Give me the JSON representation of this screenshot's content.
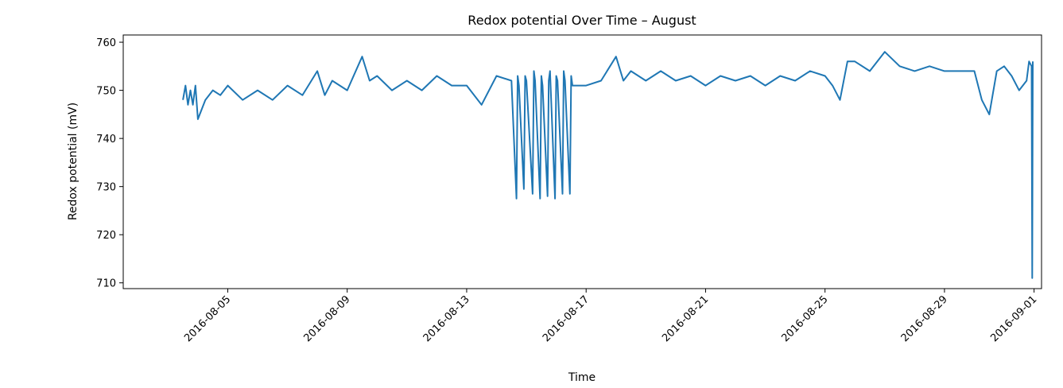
{
  "chart_data": {
    "type": "line",
    "title": "Redox potential Over Time – August",
    "xlabel": "Time",
    "ylabel": "Redox potential (mV)",
    "x_ticks": [
      "2016-08-05",
      "2016-08-09",
      "2016-08-13",
      "2016-08-17",
      "2016-08-21",
      "2016-08-25",
      "2016-08-29",
      "2016-09-01"
    ],
    "y_ticks": [
      710,
      720,
      730,
      740,
      750,
      760
    ],
    "xlim": [
      "2016-08-01T12:00",
      "2016-09-01T06:00"
    ],
    "ylim": [
      708.8,
      761.5
    ],
    "grid": false,
    "series": [
      {
        "color": "#1f77b4",
        "x": [
          "2016-08-03T12:00",
          "2016-08-03T14:00",
          "2016-08-03T16:00",
          "2016-08-03T18:00",
          "2016-08-03T20:00",
          "2016-08-03T22:00",
          "2016-08-04T00:00",
          "2016-08-04T06:00",
          "2016-08-04T12:00",
          "2016-08-04T18:00",
          "2016-08-05T00:00",
          "2016-08-05T12:00",
          "2016-08-06T00:00",
          "2016-08-06T12:00",
          "2016-08-07T00:00",
          "2016-08-07T12:00",
          "2016-08-08T00:00",
          "2016-08-08T06:00",
          "2016-08-08T12:00",
          "2016-08-09T00:00",
          "2016-08-09T12:00",
          "2016-08-09T18:00",
          "2016-08-10T00:00",
          "2016-08-10T12:00",
          "2016-08-11T00:00",
          "2016-08-11T12:00",
          "2016-08-12T00:00",
          "2016-08-12T12:00",
          "2016-08-13T00:00",
          "2016-08-13T12:00",
          "2016-08-14T00:00",
          "2016-08-14T12:00",
          "2016-08-14T16:00",
          "2016-08-14T17:00",
          "2016-08-14T18:00",
          "2016-08-14T22:00",
          "2016-08-14T23:00",
          "2016-08-15T00:00",
          "2016-08-15T05:00",
          "2016-08-15T06:00",
          "2016-08-15T07:00",
          "2016-08-15T11:00",
          "2016-08-15T12:00",
          "2016-08-15T13:00",
          "2016-08-15T17:00",
          "2016-08-15T18:00",
          "2016-08-15T19:00",
          "2016-08-15T23:00",
          "2016-08-16T00:00",
          "2016-08-16T01:00",
          "2016-08-16T05:00",
          "2016-08-16T06:00",
          "2016-08-16T07:00",
          "2016-08-16T11:00",
          "2016-08-16T12:00",
          "2016-08-16T13:00",
          "2016-08-17T00:00",
          "2016-08-17T12:00",
          "2016-08-18T00:00",
          "2016-08-18T06:00",
          "2016-08-18T12:00",
          "2016-08-19T00:00",
          "2016-08-19T12:00",
          "2016-08-20T00:00",
          "2016-08-20T12:00",
          "2016-08-21T00:00",
          "2016-08-21T12:00",
          "2016-08-22T00:00",
          "2016-08-22T12:00",
          "2016-08-23T00:00",
          "2016-08-23T12:00",
          "2016-08-24T00:00",
          "2016-08-24T12:00",
          "2016-08-25T00:00",
          "2016-08-25T06:00",
          "2016-08-25T12:00",
          "2016-08-25T18:00",
          "2016-08-26T00:00",
          "2016-08-26T12:00",
          "2016-08-27T00:00",
          "2016-08-27T12:00",
          "2016-08-28T00:00",
          "2016-08-28T12:00",
          "2016-08-29T00:00",
          "2016-08-29T12:00",
          "2016-08-30T00:00",
          "2016-08-30T06:00",
          "2016-08-30T12:00",
          "2016-08-30T18:00",
          "2016-08-31T00:00",
          "2016-08-31T06:00",
          "2016-08-31T12:00",
          "2016-08-31T18:00",
          "2016-08-31T20:00",
          "2016-08-31T22:00",
          "2016-08-31T22:30",
          "2016-08-31T23:00"
        ],
        "y": [
          748,
          751,
          747,
          750,
          747,
          751,
          744,
          748,
          750,
          749,
          751,
          748,
          750,
          748,
          751,
          749,
          754,
          749,
          752,
          750,
          757,
          752,
          753,
          750,
          752,
          750,
          753,
          751,
          751,
          747,
          753,
          752,
          727.5,
          753,
          751,
          729.5,
          753,
          752,
          728.5,
          754,
          752,
          727.5,
          753,
          751,
          728,
          752,
          754,
          727.5,
          753,
          752,
          728.5,
          754,
          752,
          728.5,
          753,
          751,
          751,
          752,
          757,
          752,
          754,
          752,
          754,
          752,
          753,
          751,
          753,
          752,
          753,
          751,
          753,
          752,
          754,
          753,
          751,
          748,
          756,
          756,
          754,
          758,
          755,
          754,
          755,
          754,
          754,
          754,
          748,
          745,
          754,
          755,
          753,
          750,
          752,
          756,
          755,
          711,
          756
        ]
      }
    ]
  }
}
